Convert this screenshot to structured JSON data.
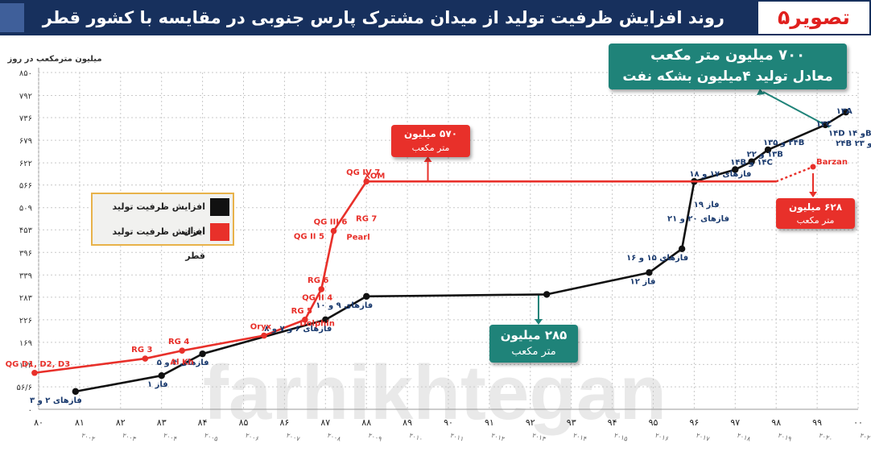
{
  "header": {
    "title": "روند افزایش ظرفیت تولید از میدان مشترک پارس جنوبی در مقایسه با کشور قطر",
    "figure_tag": "تصویر۵"
  },
  "colors": {
    "iran": "#111111",
    "qatar": "#e8302a",
    "teal": "#1f8379",
    "header": "#17305d",
    "grid": "#c9c9c9"
  },
  "chart_data": {
    "type": "line",
    "ylabel": "میلیون مترمکعب در روز",
    "ylim": [
      0,
      850
    ],
    "yticks": [
      {
        "v": 0,
        "label": "۰"
      },
      {
        "v": 56.6,
        "label": "۵۶/۶"
      },
      {
        "v": 113,
        "label": "۱۱۳"
      },
      {
        "v": 169,
        "label": "۱۶۹"
      },
      {
        "v": 226,
        "label": "۲۲۶"
      },
      {
        "v": 283,
        "label": "۲۸۳"
      },
      {
        "v": 339,
        "label": "۳۳۹"
      },
      {
        "v": 396,
        "label": "۳۹۶"
      },
      {
        "v": 453,
        "label": "۴۵۳"
      },
      {
        "v": 509,
        "label": "۵۰۹"
      },
      {
        "v": 566,
        "label": "۵۶۶"
      },
      {
        "v": 622,
        "label": "۶۲۲"
      },
      {
        "v": 679,
        "label": "۶۷۹"
      },
      {
        "v": 736,
        "label": "۷۳۶"
      },
      {
        "v": 792,
        "label": "۷۹۲"
      },
      {
        "v": 850,
        "label": "۸۵۰"
      }
    ],
    "xlim": [
      80,
      100
    ],
    "xticks": [
      {
        "v": 80,
        "label": "۸۰",
        "sub": ""
      },
      {
        "v": 81,
        "label": "۸۱",
        "sub": "۲۰۰۲"
      },
      {
        "v": 82,
        "label": "۸۲",
        "sub": "۲۰۰۳"
      },
      {
        "v": 83,
        "label": "۸۳",
        "sub": "۲۰۰۴"
      },
      {
        "v": 84,
        "label": "۸۴",
        "sub": "۲۰۰۵"
      },
      {
        "v": 85,
        "label": "۸۵",
        "sub": "۲۰۰۶"
      },
      {
        "v": 86,
        "label": "۸۶",
        "sub": "۲۰۰۷"
      },
      {
        "v": 87,
        "label": "۸۷",
        "sub": "۲۰۰۸"
      },
      {
        "v": 88,
        "label": "۸۸",
        "sub": "۲۰۰۹"
      },
      {
        "v": 89,
        "label": "۸۹",
        "sub": "۲۰۱۰"
      },
      {
        "v": 90,
        "label": "۹۰",
        "sub": "۲۰۱۱"
      },
      {
        "v": 91,
        "label": "۹۱",
        "sub": "۲۰۱۲"
      },
      {
        "v": 92,
        "label": "۹۲",
        "sub": "۲۰۱۳"
      },
      {
        "v": 93,
        "label": "۹۳",
        "sub": "۲۰۱۴"
      },
      {
        "v": 94,
        "label": "۹۴",
        "sub": "۲۰۱۵"
      },
      {
        "v": 95,
        "label": "۹۵",
        "sub": "۲۰۱۶"
      },
      {
        "v": 96,
        "label": "۹۶",
        "sub": "۲۰۱۷"
      },
      {
        "v": 97,
        "label": "۹۷",
        "sub": "۲۰۱۸"
      },
      {
        "v": 98,
        "label": "۹۸",
        "sub": "۲۰۱۹"
      },
      {
        "v": 99,
        "label": "۹۹",
        "sub": "۲۰۲۰"
      },
      {
        "v": 100,
        "label": "۰۰",
        "sub": "۲۰۲۱"
      }
    ],
    "legend": [
      {
        "name": "افزایش ظرفیت تولید ایران",
        "color": "#111111"
      },
      {
        "name": "افزایش ظرفیت تولید قطر",
        "color": "#e8302a"
      }
    ],
    "series": [
      {
        "name": "افزایش ظرفیت تولید ایران",
        "color": "#111111",
        "points": [
          {
            "x": 80.9,
            "y": 45,
            "label": "فازهای ۲ و ۳"
          },
          {
            "x": 83.0,
            "y": 85,
            "label": "فاز ۱"
          },
          {
            "x": 84.0,
            "y": 140,
            "label": "فازهای ۴ و ۵"
          },
          {
            "x": 87.0,
            "y": 226,
            "label": "فازهای ۶ و ۷ و ۸"
          },
          {
            "x": 88.0,
            "y": 285,
            "label": "فازهای ۹ و ۱۰"
          },
          {
            "x": 92.4,
            "y": 290,
            "label": ""
          },
          {
            "x": 94.9,
            "y": 345,
            "label": "فاز ۱۲"
          },
          {
            "x": 95.7,
            "y": 405,
            "label": "فازهای ۱۵ و ۱۶"
          },
          {
            "x": 96.0,
            "y": 575,
            "label": "فازهای ۱۷ و ۱۸"
          },
          {
            "x": 97.0,
            "y": 605,
            "label": "۱۴C و ۱۴B"
          },
          {
            "x": 97.4,
            "y": 625,
            "label": "۱۳B و ۲۲"
          },
          {
            "x": 97.8,
            "y": 655,
            "label": "۲۴B و ۱۳۵"
          },
          {
            "x": 99.2,
            "y": 718,
            "label": "۱۳C"
          },
          {
            "x": 99.7,
            "y": 750,
            "label": "۱۳A"
          }
        ]
      },
      {
        "name": "افزایش ظرفیت تولید قطر",
        "color": "#e8302a",
        "points": [
          {
            "x": 79.9,
            "y": 92,
            "label": "QG D1, D2, D3"
          },
          {
            "x": 82.6,
            "y": 128,
            "label": "RG 3"
          },
          {
            "x": 83.5,
            "y": 148,
            "label": "RG 4"
          },
          {
            "x": 85.5,
            "y": 186,
            "label": "Oryx"
          },
          {
            "x": 86.5,
            "y": 226,
            "label": "RG 5"
          },
          {
            "x": 86.9,
            "y": 303,
            "label": "RG 6"
          },
          {
            "x": 87.2,
            "y": 450,
            "label": "QG III 6"
          },
          {
            "x": 88.0,
            "y": 575,
            "label": "QG IV 7"
          },
          {
            "x": 98.0,
            "y": 575,
            "label": ""
          }
        ]
      }
    ],
    "projection": {
      "x0": 98.0,
      "y0": 575,
      "x1": 98.9,
      "y1": 612,
      "label": "Barzan"
    },
    "point_labels_extra": [
      {
        "text": "Al Kh",
        "x": 83.5,
        "y": 113,
        "color": "#e8302a"
      },
      {
        "text": "Dolphin",
        "x": 86.8,
        "y": 210,
        "color": "#e8302a"
      },
      {
        "text": "QG II 4",
        "x": 86.8,
        "y": 276,
        "color": "#e8302a"
      },
      {
        "text": "QG II 5",
        "x": 86.6,
        "y": 430,
        "color": "#e8302a"
      },
      {
        "text": "Pearl",
        "x": 87.8,
        "y": 428,
        "color": "#e8302a"
      },
      {
        "text": "RG 7",
        "x": 88.0,
        "y": 475,
        "color": "#e8302a"
      },
      {
        "text": "XOM",
        "x": 88.2,
        "y": 583,
        "color": "#e8302a"
      },
      {
        "text": "فاز ۱۹",
        "x": 96.3,
        "y": 510,
        "color": "#1a3a6e"
      },
      {
        "text": "فازهای ۲۰ و ۲۱",
        "x": 96.1,
        "y": 475,
        "color": "#1a3a6e"
      },
      {
        "text": "۱۴D و ۱۴B",
        "x": 99.8,
        "y": 690,
        "color": "#1a3a6e"
      },
      {
        "text": "۲۴B و ۲۳",
        "x": 99.9,
        "y": 665,
        "color": "#1a3a6e"
      }
    ],
    "annotations": {
      "qatar_570": {
        "line1": "۵۷۰ میلیون",
        "line2": "متر مکعب"
      },
      "iran_285": {
        "line1": "۲۸۵ میلیون",
        "line2": "متر مکعب"
      },
      "qatar_628": {
        "line1": "۶۲۸ میلیون",
        "line2": "متر مکعب"
      },
      "iran_700": {
        "line1": "۷۰۰ میلیون متر مکعب",
        "line2": "معادل تولید ۴میلیون بشکه نفت"
      }
    },
    "watermark": "farhikhtegan"
  }
}
